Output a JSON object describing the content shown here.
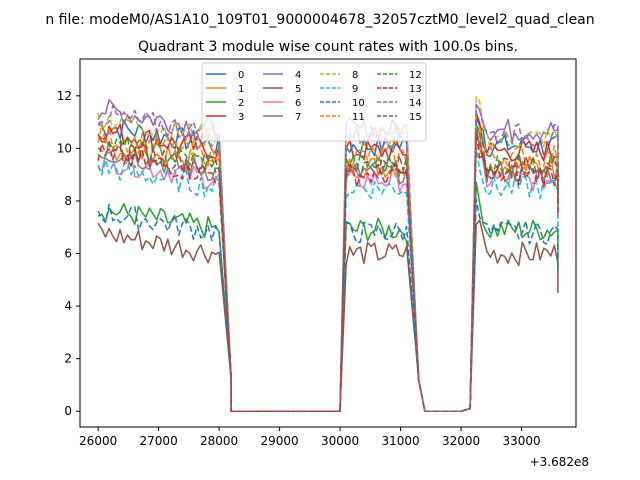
{
  "chart_data": {
    "type": "line",
    "suptitle": "n file: modeM0/AS1A10_109T01_9000004678_32057cztM0_level2_quad_clean",
    "title": "Quadrant 3 module wise count rates with 100.0s bins.",
    "xlabel": "",
    "ylabel": "",
    "x_offset_label": "+3.682e8",
    "xlim": [
      25700,
      33900
    ],
    "ylim": [
      -0.6,
      13.4
    ],
    "xticks": [
      26000,
      27000,
      28000,
      29000,
      30000,
      31000,
      32000,
      33000
    ],
    "yticks": [
      0,
      2,
      4,
      6,
      8,
      10,
      12
    ],
    "legend_position": "top-center",
    "legend_columns": 4,
    "series": [
      {
        "name": "0",
        "color": "#1f77b4",
        "dash": "solid",
        "level": 10.1
      },
      {
        "name": "1",
        "color": "#ff7f0e",
        "dash": "solid",
        "level": 9.3
      },
      {
        "name": "2",
        "color": "#2ca02c",
        "dash": "solid",
        "level": 6.9
      },
      {
        "name": "3",
        "color": "#d62728",
        "dash": "solid",
        "level": 9.9
      },
      {
        "name": "4",
        "color": "#9467bd",
        "dash": "solid",
        "level": 10.7
      },
      {
        "name": "5",
        "color": "#8c564b",
        "dash": "solid",
        "level": 6.0
      },
      {
        "name": "6",
        "color": "#e377c2",
        "dash": "solid",
        "level": 8.8
      },
      {
        "name": "7",
        "color": "#7f7f7f",
        "dash": "solid",
        "level": 9.1
      },
      {
        "name": "8",
        "color": "#bcbd22",
        "dash": "dashed",
        "level": 10.4
      },
      {
        "name": "9",
        "color": "#17becf",
        "dash": "dashed",
        "level": 8.5
      },
      {
        "name": "10",
        "color": "#1f77b4",
        "dash": "dashed",
        "level": 6.8
      },
      {
        "name": "11",
        "color": "#ff7f0e",
        "dash": "dashed",
        "level": 9.7
      },
      {
        "name": "12",
        "color": "#2ca02c",
        "dash": "dashed",
        "level": 9.4
      },
      {
        "name": "13",
        "color": "#d62728",
        "dash": "dashed",
        "level": 9.0
      },
      {
        "name": "14",
        "color": "#9467bd",
        "dash": "dashed",
        "level": 10.5
      },
      {
        "name": "15",
        "color": "#8c564b",
        "dash": "dashed",
        "level": 9.3
      }
    ],
    "segments": [
      {
        "x_start": 26000,
        "x_end": 28000,
        "drop_to": 28200
      },
      {
        "x_start": 30100,
        "x_end": 31100,
        "drop_to": 31300
      },
      {
        "x_start": 32250,
        "x_end": 33600,
        "drop_to": 33600
      }
    ],
    "zero_intervals": [
      [
        28200,
        30000
      ],
      [
        31400,
        32000
      ]
    ]
  }
}
